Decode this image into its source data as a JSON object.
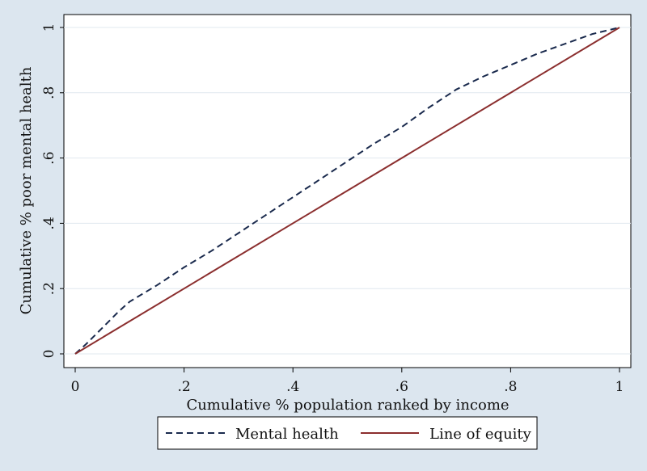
{
  "chart_data": {
    "type": "line",
    "title": "",
    "xlabel": "Cumulative % population ranked by income",
    "ylabel": "Cumulative % poor mental health",
    "xlim": [
      0,
      1
    ],
    "ylim": [
      0,
      1
    ],
    "x_ticks": [
      0,
      0.2,
      0.4,
      0.6,
      0.8,
      1
    ],
    "x_tick_labels": [
      "0",
      ".2",
      ".4",
      ".6",
      ".8",
      "1"
    ],
    "y_ticks": [
      0,
      0.2,
      0.4,
      0.6,
      0.8,
      1
    ],
    "y_tick_labels": [
      "0",
      ".2",
      ".4",
      ".6",
      ".8",
      "1"
    ],
    "grid": "horizontal",
    "legend_position": "bottom",
    "series": [
      {
        "name": "Mental health",
        "style": "dashed",
        "color": "#1a2a4d",
        "x": [
          0,
          0.02,
          0.05,
          0.08,
          0.1,
          0.15,
          0.2,
          0.25,
          0.3,
          0.35,
          0.4,
          0.45,
          0.5,
          0.55,
          0.6,
          0.65,
          0.7,
          0.75,
          0.8,
          0.85,
          0.9,
          0.95,
          1.0
        ],
        "y": [
          0,
          0.03,
          0.08,
          0.13,
          0.16,
          0.21,
          0.265,
          0.315,
          0.37,
          0.425,
          0.48,
          0.535,
          0.59,
          0.645,
          0.695,
          0.755,
          0.81,
          0.85,
          0.885,
          0.92,
          0.95,
          0.98,
          1.0
        ]
      },
      {
        "name": "Line of equity",
        "style": "solid",
        "color": "#8b2e2e",
        "x": [
          0,
          1
        ],
        "y": [
          0,
          1
        ]
      }
    ]
  }
}
